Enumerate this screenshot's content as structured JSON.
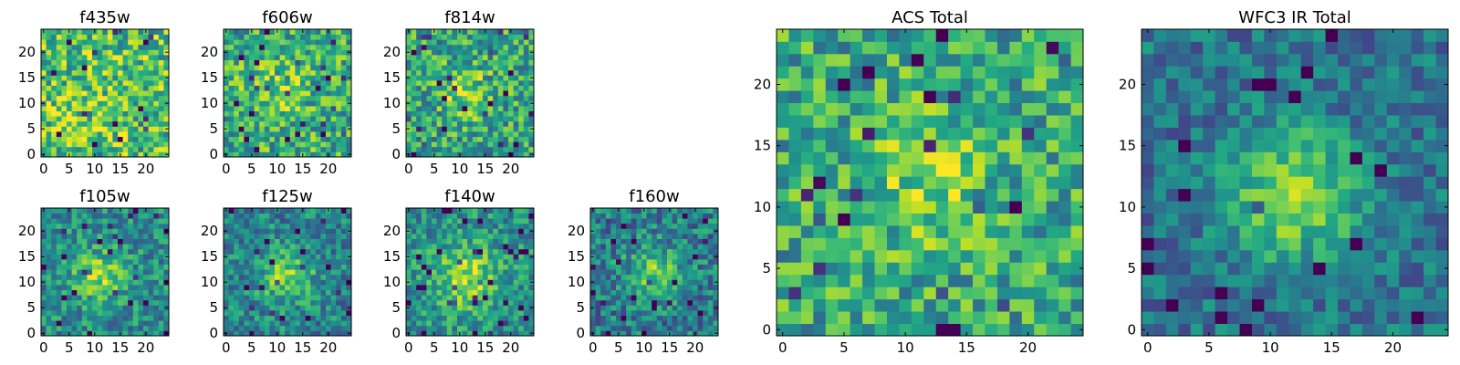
{
  "colormap": "viridis",
  "chart_data": [
    {
      "type": "heatmap",
      "title": "f435w",
      "grid": [
        25,
        25
      ],
      "xticks": [
        0,
        5,
        10,
        15,
        20
      ],
      "yticks": [
        0,
        5,
        10,
        15,
        20
      ],
      "xlim": [
        0,
        24
      ],
      "ylim": [
        0,
        24
      ],
      "seed": 11,
      "center": [
        9,
        6
      ],
      "peak": 0.08,
      "noise": 0.3,
      "base": 0.7,
      "width": 7
    },
    {
      "type": "heatmap",
      "title": "f606w",
      "grid": [
        25,
        25
      ],
      "xticks": [
        0,
        5,
        10,
        15,
        20
      ],
      "yticks": [
        0,
        5,
        10,
        15,
        20
      ],
      "xlim": [
        0,
        24
      ],
      "ylim": [
        0,
        24
      ],
      "seed": 23,
      "center": [
        10,
        13
      ],
      "peak": 0.18,
      "noise": 0.28,
      "base": 0.62,
      "width": 6
    },
    {
      "type": "heatmap",
      "title": "f814w",
      "grid": [
        25,
        25
      ],
      "xticks": [
        0,
        5,
        10,
        15,
        20
      ],
      "yticks": [
        0,
        5,
        10,
        15,
        20
      ],
      "xlim": [
        0,
        24
      ],
      "ylim": [
        0,
        24
      ],
      "seed": 37,
      "center": [
        11,
        12
      ],
      "peak": 0.25,
      "noise": 0.28,
      "base": 0.58,
      "width": 5
    },
    {
      "type": "heatmap",
      "title": "f105w",
      "grid": [
        25,
        25
      ],
      "xticks": [
        0,
        5,
        10,
        15,
        20
      ],
      "yticks": [
        0,
        5,
        10,
        15,
        20
      ],
      "xlim": [
        0,
        24
      ],
      "ylim": [
        0,
        24
      ],
      "seed": 41,
      "center": [
        11,
        11
      ],
      "peak": 0.35,
      "noise": 0.22,
      "base": 0.48,
      "width": 5
    },
    {
      "type": "heatmap",
      "title": "f125w",
      "grid": [
        25,
        25
      ],
      "xticks": [
        0,
        5,
        10,
        15,
        20
      ],
      "yticks": [
        0,
        5,
        10,
        15,
        20
      ],
      "xlim": [
        0,
        24
      ],
      "ylim": [
        0,
        24
      ],
      "seed": 53,
      "center": [
        12,
        11
      ],
      "peak": 0.35,
      "noise": 0.22,
      "base": 0.45,
      "width": 5
    },
    {
      "type": "heatmap",
      "title": "f140w",
      "grid": [
        25,
        25
      ],
      "xticks": [
        0,
        5,
        10,
        15,
        20
      ],
      "yticks": [
        0,
        5,
        10,
        15,
        20
      ],
      "xlim": [
        0,
        24
      ],
      "ylim": [
        0,
        24
      ],
      "seed": 67,
      "center": [
        11,
        11
      ],
      "peak": 0.38,
      "noise": 0.22,
      "base": 0.5,
      "width": 6
    },
    {
      "type": "heatmap",
      "title": "f160w",
      "grid": [
        25,
        25
      ],
      "xticks": [
        0,
        5,
        10,
        15,
        20
      ],
      "yticks": [
        0,
        5,
        10,
        15,
        20
      ],
      "xlim": [
        0,
        24
      ],
      "ylim": [
        0,
        24
      ],
      "seed": 79,
      "center": [
        12,
        12
      ],
      "peak": 0.35,
      "noise": 0.24,
      "base": 0.42,
      "width": 5
    },
    {
      "type": "heatmap",
      "title": "ACS Total",
      "grid": [
        25,
        25
      ],
      "xticks": [
        0,
        5,
        10,
        15,
        20
      ],
      "yticks": [
        0,
        5,
        10,
        15,
        20
      ],
      "xlim": [
        0,
        24
      ],
      "ylim": [
        0,
        24
      ],
      "seed": 97,
      "center": [
        12,
        12
      ],
      "peak": 0.22,
      "noise": 0.26,
      "base": 0.6,
      "width": 5
    },
    {
      "type": "heatmap",
      "title": "WFC3 IR Total",
      "grid": [
        25,
        25
      ],
      "xticks": [
        0,
        5,
        10,
        15,
        20
      ],
      "yticks": [
        0,
        5,
        10,
        15,
        20
      ],
      "xlim": [
        0,
        24
      ],
      "ylim": [
        0,
        24
      ],
      "seed": 113,
      "center": [
        12,
        11
      ],
      "peak": 0.5,
      "noise": 0.18,
      "base": 0.38,
      "width": 5
    }
  ]
}
